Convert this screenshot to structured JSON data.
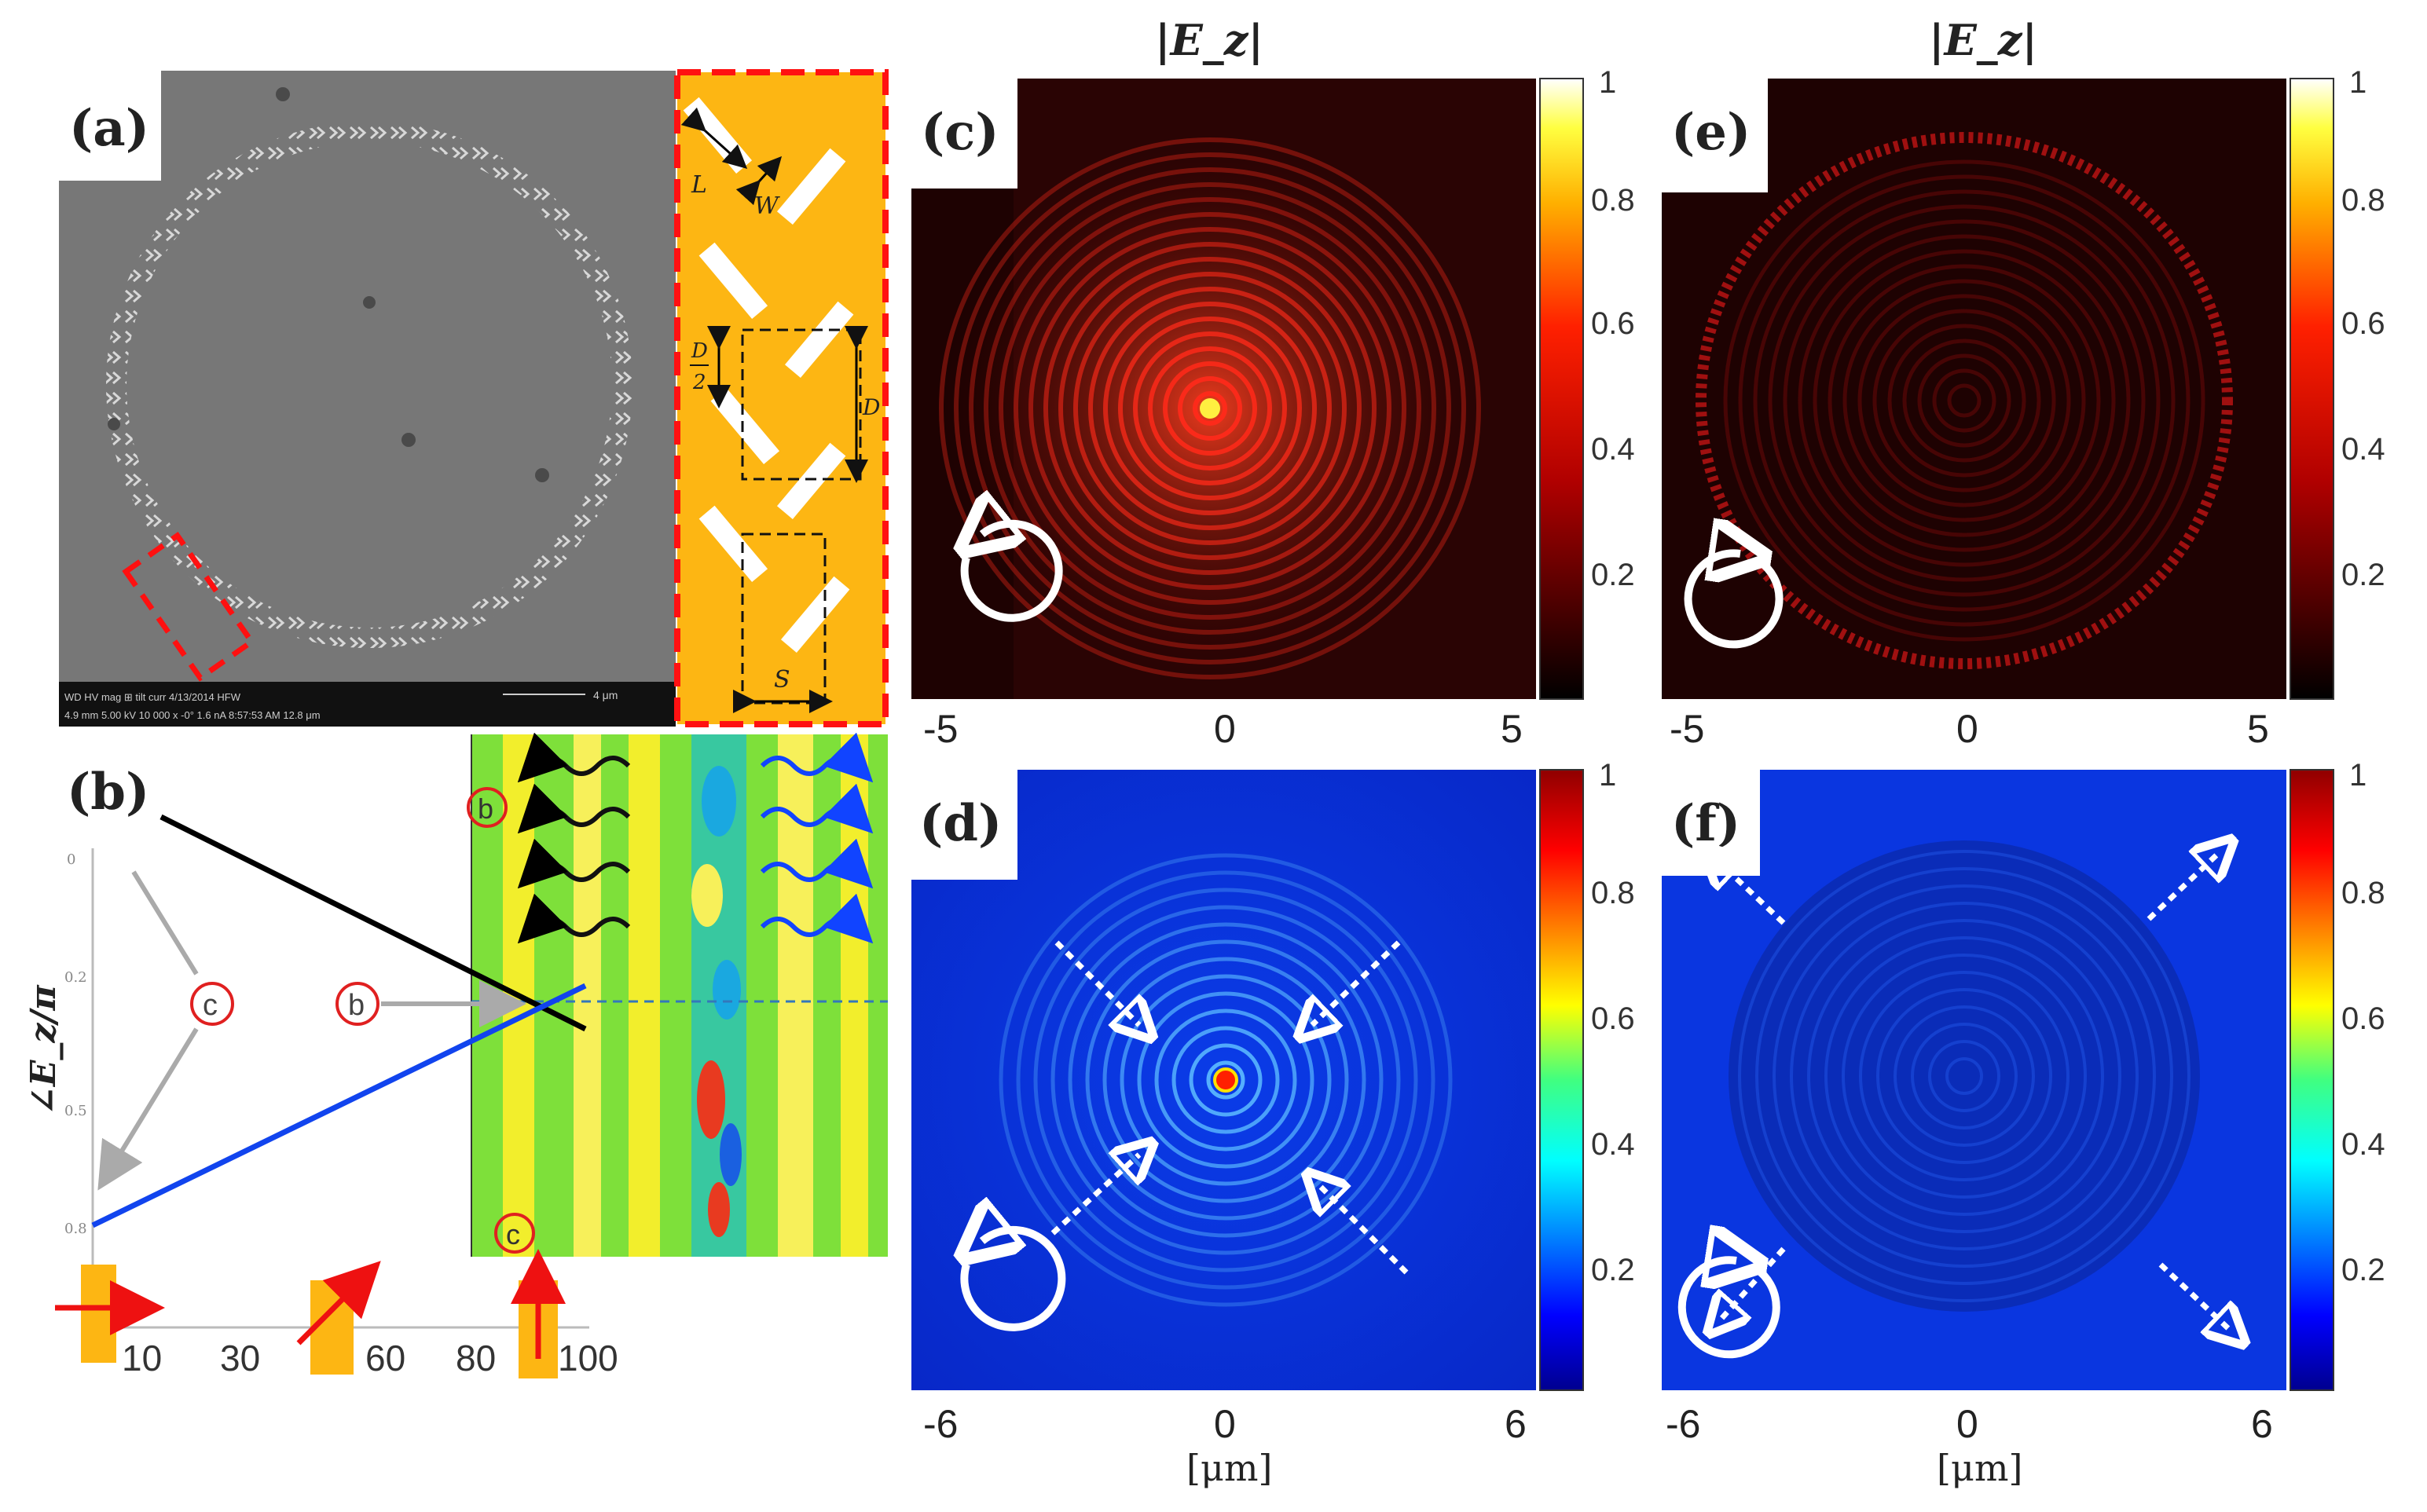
{
  "panel_labels": {
    "a": "(a)",
    "b": "(b)",
    "c": "(c)",
    "d": "(d)",
    "e": "(e)",
    "f": "(f)"
  },
  "titles": {
    "c": "|E_z|",
    "e": "|E_z|"
  },
  "sem": {
    "scalebar_label": "4 μm",
    "info_line_1": "WD      HV      mag ⊞    tilt    curr     4/13/2014    HFW",
    "info_line_2": "4.9 mm  5.00 kV  10 000 x  -0°  1.6 nA 8:57:53 AM  12.8 μm"
  },
  "unit_cell": {
    "labels": {
      "L": "L",
      "W": "W",
      "D_half_num": "D",
      "D_half_den": "2",
      "D": "D",
      "S": "S"
    }
  },
  "panel_b": {
    "ylabel": "∠E_z/π",
    "yticks": [
      "0",
      "0.2",
      "0.5",
      "0.8"
    ],
    "xticks": [
      "10",
      "30",
      "60",
      "80",
      "100"
    ],
    "markers": [
      "c",
      "b",
      "c"
    ],
    "inset_markers": [
      "b",
      "c"
    ]
  },
  "chart_data": {
    "type": "line",
    "xlabel": "",
    "ylabel": "∠E_z/π",
    "series": [
      {
        "x": [
          0,
          100
        ],
        "y": [
          0.0,
          0.29
        ]
      },
      {
        "x": [
          0,
          100
        ],
        "y": [
          -0.78,
          0.2
        ]
      }
    ]
  },
  "panel_c": {
    "xticks": [
      "-5",
      "0",
      "5"
    ],
    "cbar_ticks": [
      "1",
      "0.8",
      "0.6",
      "0.4",
      "0.2"
    ]
  },
  "panel_e": {
    "xticks": [
      "-5",
      "0",
      "5"
    ],
    "cbar_ticks": [
      "1",
      "0.8",
      "0.6",
      "0.4",
      "0.2"
    ]
  },
  "panel_d": {
    "xticks": [
      "-6",
      "0",
      "6"
    ],
    "xlabel": "[μm]",
    "cbar_ticks": [
      "1",
      "0.8",
      "0.6",
      "0.4",
      "0.2"
    ]
  },
  "panel_f": {
    "xticks": [
      "-6",
      "0",
      "6"
    ],
    "xlabel": "[μm]",
    "cbar_ticks": [
      "1",
      "0.8",
      "0.6",
      "0.4",
      "0.2"
    ]
  }
}
